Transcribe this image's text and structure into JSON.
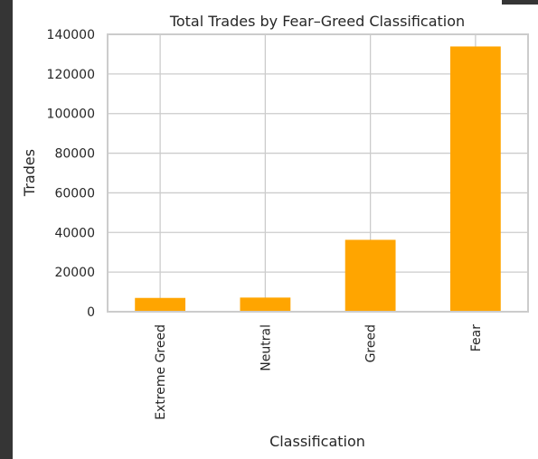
{
  "chart_data": {
    "type": "bar",
    "title": "Total Trades by Fear–Greed Classification",
    "xlabel": "Classification",
    "ylabel": "Trades",
    "categories": [
      "Extreme Greed",
      "Neutral",
      "Greed",
      "Fear"
    ],
    "values": [
      6962,
      7141,
      36289,
      133871
    ],
    "ylim": [
      0,
      140000
    ],
    "yticks": [
      "0",
      "20000",
      "40000",
      "60000",
      "80000",
      "100000",
      "120000",
      "140000"
    ],
    "grid": true,
    "bar_color": "#FFA500",
    "grid_color": "#cccccc",
    "frame_color": "#cccccc"
  }
}
